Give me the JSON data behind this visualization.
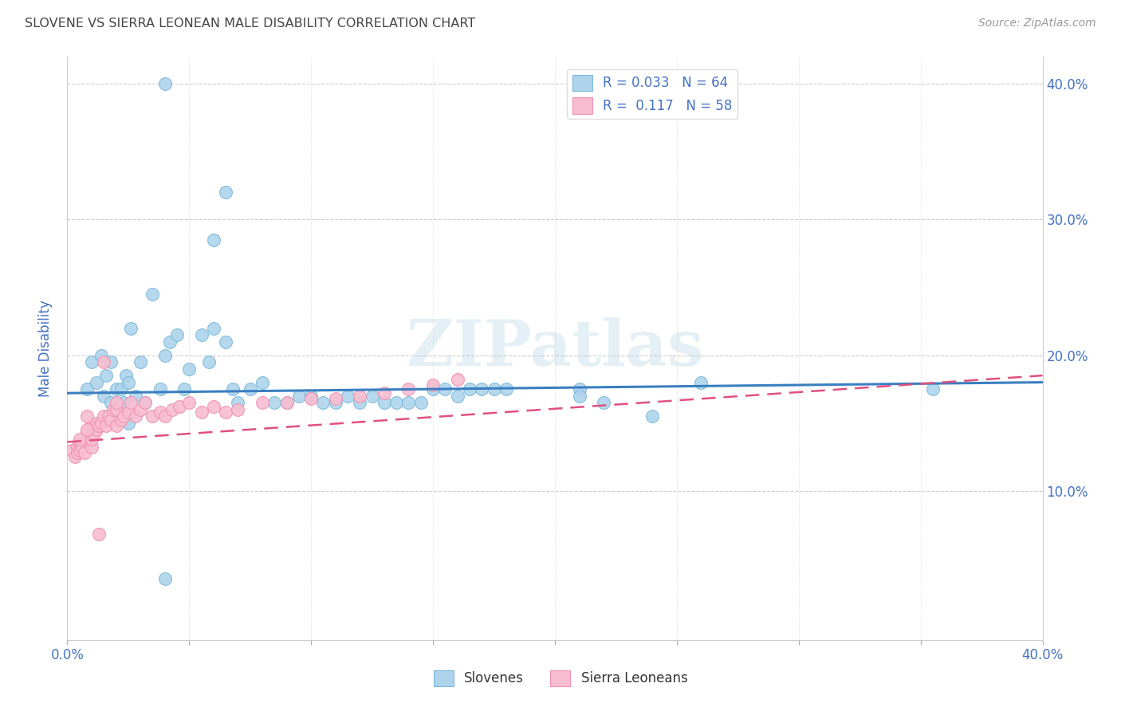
{
  "title": "SLOVENE VS SIERRA LEONEAN MALE DISABILITY CORRELATION CHART",
  "source": "Source: ZipAtlas.com",
  "ylabel": "Male Disability",
  "xlim": [
    0.0,
    0.4
  ],
  "ylim": [
    -0.01,
    0.42
  ],
  "watermark": "ZIPatlas",
  "legend_blue_label": "R = 0.033   N = 64",
  "legend_pink_label": "R =  0.117   N = 58",
  "legend_bottom_blue": "Slovenes",
  "legend_bottom_pink": "Sierra Leoneans",
  "blue_edge_color": "#7ab8d9",
  "pink_edge_color": "#f090b0",
  "blue_line_color": "#3a7fc1",
  "pink_line_color": "#e05080",
  "blue_scatter_color": "#aed4eb",
  "pink_scatter_color": "#f8bdd0",
  "blue_trend_x": [
    0.0,
    0.4
  ],
  "blue_trend_y": [
    0.172,
    0.18
  ],
  "pink_trend_x": [
    0.0,
    0.4
  ],
  "pink_trend_y": [
    0.136,
    0.185
  ],
  "grid_color": "#c8c8c8",
  "title_color": "#444444",
  "axis_label_color": "#4472c4",
  "tick_label_color": "#4472c4",
  "background_color": "#ffffff",
  "slovene_x": [
    0.008,
    0.01,
    0.012,
    0.014,
    0.015,
    0.016,
    0.018,
    0.018,
    0.02,
    0.02,
    0.022,
    0.023,
    0.024,
    0.025,
    0.025,
    0.026,
    0.028,
    0.03,
    0.032,
    0.035,
    0.038,
    0.04,
    0.042,
    0.045,
    0.048,
    0.05,
    0.055,
    0.058,
    0.06,
    0.065,
    0.068,
    0.07,
    0.075,
    0.08,
    0.085,
    0.09,
    0.095,
    0.1,
    0.105,
    0.11,
    0.115,
    0.12,
    0.125,
    0.13,
    0.135,
    0.14,
    0.145,
    0.15,
    0.155,
    0.16,
    0.165,
    0.17,
    0.175,
    0.18,
    0.21,
    0.22,
    0.24,
    0.26,
    0.355,
    0.04,
    0.06,
    0.065,
    0.04,
    0.21
  ],
  "slovene_y": [
    0.175,
    0.195,
    0.18,
    0.2,
    0.17,
    0.185,
    0.165,
    0.195,
    0.155,
    0.175,
    0.175,
    0.165,
    0.185,
    0.15,
    0.18,
    0.22,
    0.17,
    0.195,
    0.165,
    0.245,
    0.175,
    0.2,
    0.21,
    0.215,
    0.175,
    0.19,
    0.215,
    0.195,
    0.22,
    0.21,
    0.175,
    0.165,
    0.175,
    0.18,
    0.165,
    0.165,
    0.17,
    0.17,
    0.165,
    0.165,
    0.17,
    0.165,
    0.17,
    0.165,
    0.165,
    0.165,
    0.165,
    0.175,
    0.175,
    0.17,
    0.175,
    0.175,
    0.175,
    0.175,
    0.175,
    0.165,
    0.155,
    0.18,
    0.175,
    0.4,
    0.285,
    0.32,
    0.035,
    0.17
  ],
  "sierra_leone_x": [
    0.002,
    0.003,
    0.004,
    0.004,
    0.005,
    0.005,
    0.006,
    0.007,
    0.008,
    0.008,
    0.009,
    0.01,
    0.01,
    0.01,
    0.011,
    0.012,
    0.012,
    0.013,
    0.014,
    0.015,
    0.016,
    0.017,
    0.018,
    0.019,
    0.02,
    0.02,
    0.022,
    0.023,
    0.025,
    0.026,
    0.028,
    0.03,
    0.032,
    0.035,
    0.038,
    0.04,
    0.043,
    0.046,
    0.05,
    0.055,
    0.06,
    0.065,
    0.07,
    0.08,
    0.09,
    0.1,
    0.11,
    0.12,
    0.13,
    0.14,
    0.15,
    0.16,
    0.005,
    0.008,
    0.008,
    0.013,
    0.015,
    0.02
  ],
  "sierra_leone_y": [
    0.13,
    0.125,
    0.132,
    0.128,
    0.135,
    0.13,
    0.132,
    0.128,
    0.138,
    0.142,
    0.14,
    0.132,
    0.138,
    0.148,
    0.142,
    0.145,
    0.15,
    0.148,
    0.15,
    0.155,
    0.148,
    0.155,
    0.152,
    0.16,
    0.148,
    0.16,
    0.152,
    0.155,
    0.158,
    0.165,
    0.155,
    0.16,
    0.165,
    0.155,
    0.158,
    0.155,
    0.16,
    0.162,
    0.165,
    0.158,
    0.162,
    0.158,
    0.16,
    0.165,
    0.165,
    0.168,
    0.168,
    0.17,
    0.172,
    0.175,
    0.178,
    0.182,
    0.138,
    0.145,
    0.155,
    0.068,
    0.195,
    0.165
  ]
}
